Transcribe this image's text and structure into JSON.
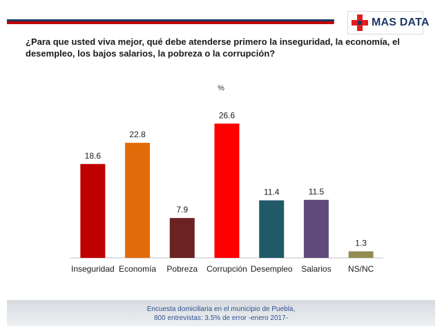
{
  "logo": {
    "text": "MAS DATA",
    "icon": "red-cross-icon"
  },
  "question": "¿Para que usted viva mejor, qué debe atenderse primero la inseguridad, la economía, el desempleo, los bajos salarios, la pobreza o la corrupción?",
  "footer": {
    "line1": "Encuesta domiciliaria en el municipio de Puebla,",
    "line2": "800 entrevistas: 3.5% de error -enero 2017-"
  },
  "colors": {
    "header_dark": "#1f3864",
    "header_red": "#c00000",
    "footer_text": "#2f4f8f"
  },
  "chart_data": {
    "type": "bar",
    "unit_label": "%",
    "categories": [
      "Inseguridad",
      "Economía",
      "Pobreza",
      "Corrupción",
      "Desempleo",
      "Salarios",
      "NS/NC"
    ],
    "values": [
      18.6,
      22.8,
      7.9,
      26.6,
      11.4,
      11.5,
      1.3
    ],
    "value_labels": [
      "18.6",
      "22.8",
      "7.9",
      "26.6",
      "11.4",
      "11.5",
      "1.3"
    ],
    "colors": [
      "#c00000",
      "#e36c0a",
      "#6b2222",
      "#ff0000",
      "#215968",
      "#604a7b",
      "#948a54"
    ],
    "ylim": [
      0,
      28
    ],
    "grid": false,
    "legend": "none"
  }
}
